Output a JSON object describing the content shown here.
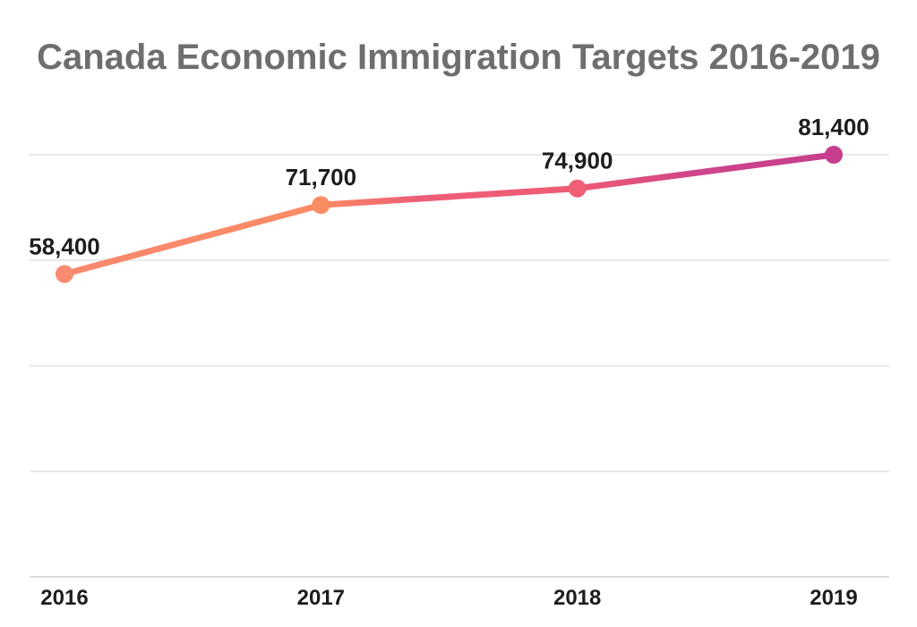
{
  "title": "Canada Economic Immigration Targets 2016-2019",
  "chart_data": {
    "type": "line",
    "title": "Canada Economic Immigration Targets 2016-2019",
    "categories": [
      "2016",
      "2017",
      "2018",
      "2019"
    ],
    "values": [
      58400,
      71700,
      74900,
      81400
    ],
    "value_labels": [
      "58,400",
      "71,700",
      "74,900",
      "81,400"
    ],
    "xlabel": "",
    "ylabel": "",
    "ylim": [
      0,
      81400
    ],
    "grid": true,
    "gridline_count": 5,
    "legend": false
  },
  "colors": {
    "background": "#FFFFFF",
    "title_text": "#6E6E6E",
    "data_label_text": "#1D1D1D",
    "axis_label_text": "#1D1D1D",
    "gridline": "#E9E9E9",
    "axis_line": "#DCDCDC",
    "marker_colors": [
      "#F98B72",
      "#FC8D63",
      "#F05F76",
      "#C73E8E"
    ],
    "line_gradient_stops": [
      [
        0.0,
        "#F9886F"
      ],
      [
        0.33,
        "#FB8C63"
      ],
      [
        0.46,
        "#EE5E78"
      ],
      [
        0.67,
        "#EE5A73"
      ],
      [
        0.82,
        "#CF448A"
      ],
      [
        1.0,
        "#C63E8D"
      ]
    ]
  }
}
